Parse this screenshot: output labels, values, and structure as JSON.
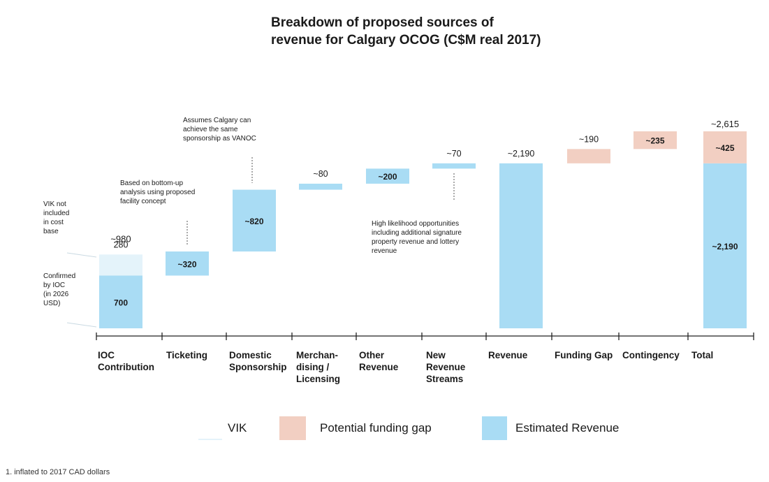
{
  "title_lines": [
    "Breakdown of proposed sources of",
    "revenue for Calgary OCOG (C$M real 2017)"
  ],
  "colors": {
    "revenue": "#a9dcf4",
    "gap": "#f2cfc2",
    "vik": "#e4f3fa",
    "axis": "#222222"
  },
  "chart_data": {
    "type": "waterfall",
    "title": "Breakdown of proposed sources of revenue for Calgary OCOG (C$M real 2017)",
    "unit": "C$M real 2017",
    "categories": [
      "IOC Contribution",
      "Ticketing",
      "Domestic Sponsorship",
      "Merchandising / Licensing",
      "Other Revenue",
      "New Revenue Streams",
      "Revenue",
      "Funding Gap",
      "Contingency",
      "Total"
    ],
    "category_lines": [
      [
        "IOC",
        "Contribution"
      ],
      [
        "Ticketing"
      ],
      [
        "Domestic",
        "Sponsorship"
      ],
      [
        "Merchan-",
        "dising /",
        "Licensing"
      ],
      [
        "Other",
        "Revenue"
      ],
      [
        "New",
        "Revenue",
        "Streams"
      ],
      [
        "Revenue"
      ],
      [
        "Funding Gap"
      ],
      [
        "Contingency"
      ],
      [
        "Total"
      ]
    ],
    "bars": [
      {
        "category": "IOC Contribution",
        "start": 0,
        "end": 700,
        "series": "Estimated Revenue",
        "label": "700",
        "label_pos": "inside"
      },
      {
        "category": "IOC Contribution",
        "start": 700,
        "end": 980,
        "series": "VIK",
        "label": "280",
        "label_pos": "above"
      },
      {
        "category": "Ticketing",
        "start": 700,
        "end": 1020,
        "series": "Estimated Revenue",
        "label": "~320",
        "label_pos": "inside"
      },
      {
        "category": "Domestic Sponsorship",
        "start": 1020,
        "end": 1840,
        "series": "Estimated Revenue",
        "label": "~820",
        "label_pos": "inside"
      },
      {
        "category": "Merchandising / Licensing",
        "start": 1840,
        "end": 1920,
        "series": "Estimated Revenue",
        "label": "~80",
        "label_pos": "above"
      },
      {
        "category": "Other Revenue",
        "start": 1920,
        "end": 2120,
        "series": "Estimated Revenue",
        "label": "~200",
        "label_pos": "inside"
      },
      {
        "category": "New Revenue Streams",
        "start": 2120,
        "end": 2190,
        "series": "Estimated Revenue",
        "label": "~70",
        "label_pos": "above"
      },
      {
        "category": "Revenue",
        "start": 0,
        "end": 2190,
        "series": "Estimated Revenue",
        "label": "~2,190",
        "label_pos": "above"
      },
      {
        "category": "Funding Gap",
        "start": 2190,
        "end": 2380,
        "series": "Potential funding gap",
        "label": "~190",
        "label_pos": "above"
      },
      {
        "category": "Contingency",
        "start": 2380,
        "end": 2615,
        "series": "Potential funding gap",
        "label": "~235",
        "label_pos": "inside"
      },
      {
        "category": "Total",
        "start": 0,
        "end": 2190,
        "series": "Estimated Revenue",
        "label": "~2,190",
        "label_pos": "inside"
      },
      {
        "category": "Total",
        "start": 2190,
        "end": 2615,
        "series": "Potential funding gap",
        "label": "~425",
        "label_pos": "inside"
      }
    ],
    "extra_labels": [
      {
        "category": "IOC Contribution",
        "value": 980,
        "label": "~980"
      },
      {
        "category": "Total",
        "value": 2615,
        "label": "~2,615"
      }
    ],
    "legend": [
      {
        "name": "VIK",
        "color_key": "vik"
      },
      {
        "name": "Potential funding gap",
        "color_key": "gap"
      },
      {
        "name": "Estimated Revenue",
        "color_key": "revenue"
      }
    ],
    "ylim": [
      0,
      2615
    ],
    "legend_position": "bottom"
  },
  "annotations": {
    "vik_note": [
      "VIK not",
      "included",
      "in cost",
      "base"
    ],
    "ioc_note": [
      "Confirmed",
      "by IOC",
      "(in 2026",
      "USD)"
    ],
    "ticketing_note": [
      "Based on bottom-up",
      "analysis using proposed",
      "facility concept"
    ],
    "sponsorship_note": [
      "Assumes Calgary can",
      "achieve the same",
      "sponsorship as VANOC"
    ],
    "new_streams_note": [
      "High likelihood opportunities",
      "including additional signature",
      "property revenue and lottery",
      "revenue"
    ]
  },
  "footnote": "1. inflated to 2017 CAD dollars"
}
